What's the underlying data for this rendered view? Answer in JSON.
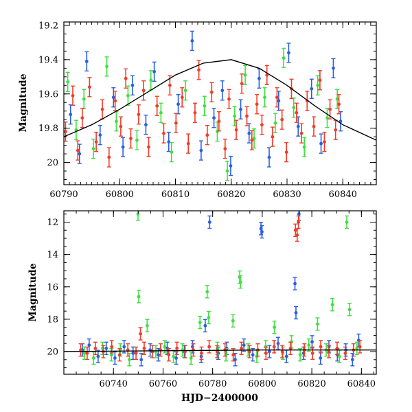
{
  "chart_data": [
    {
      "type": "scatter",
      "title": "",
      "xlabel": "",
      "ylabel": "Magnitude",
      "xlim": [
        60790,
        60846
      ],
      "ylim": [
        20.13,
        19.18
      ],
      "y_inverted": true,
      "xticks": [
        60790,
        60800,
        60810,
        60820,
        60830,
        60840
      ],
      "xtick_labels": [
        "60790",
        "60800",
        "60810",
        "60820",
        "60830",
        "60840"
      ],
      "yticks": [
        19.2,
        19.4,
        19.6,
        19.8,
        20
      ],
      "ytick_labels": [
        "19.2",
        "19.4",
        "19.6",
        "19.8",
        "20"
      ],
      "legend": "none",
      "error_bars": true,
      "series_colors": [
        "#2a5fe0",
        "#3ee03e",
        "#f03c28"
      ],
      "model_curve": {
        "x": [
          60790,
          60795,
          60800,
          60805,
          60810,
          60815,
          60820,
          60825,
          60830,
          60835,
          60840,
          60846
        ],
        "y": [
          19.85,
          19.78,
          19.69,
          19.59,
          19.49,
          19.42,
          19.4,
          19.45,
          19.55,
          19.67,
          19.78,
          19.87
        ]
      },
      "series": [
        {
          "color": "#2a5fe0",
          "x": [
            60791.2,
            60792.8,
            60794.1,
            60796.5,
            60798.9,
            60800.6,
            60802.3,
            60804.7,
            60806.2,
            60808.8,
            60810.5,
            60813.0,
            60814.6,
            60816.9,
            60818.4,
            60819.9,
            60821.7,
            60823.2,
            60825.0,
            60826.8,
            60828.5,
            60830.3,
            60832.0,
            60834.4,
            60836.1,
            60838.3,
            60839.6
          ],
          "y": [
            19.72,
            19.95,
            19.41,
            19.84,
            19.62,
            19.91,
            19.55,
            19.78,
            19.47,
            19.88,
            19.66,
            19.29,
            19.93,
            19.74,
            19.58,
            20.02,
            19.69,
            19.83,
            19.51,
            19.97,
            19.64,
            19.36,
            19.79,
            19.57,
            19.89,
            19.45,
            19.76
          ]
        },
        {
          "color": "#3ee03e",
          "x": [
            60790.7,
            60792.2,
            60793.6,
            60795.3,
            60797.7,
            60799.4,
            60801.5,
            60803.1,
            60805.6,
            60807.4,
            60809.3,
            60811.8,
            60815.2,
            60817.5,
            60819.3,
            60820.6,
            60822.5,
            60824.1,
            60826.0,
            60827.9,
            60829.4,
            60831.2,
            60833.1,
            60835.5,
            60837.2,
            60839.0
          ],
          "y": [
            19.53,
            19.81,
            19.63,
            19.92,
            19.44,
            19.76,
            19.61,
            19.87,
            19.52,
            19.71,
            19.94,
            19.58,
            19.67,
            19.82,
            20.05,
            19.73,
            19.49,
            19.86,
            19.62,
            19.77,
            19.39,
            19.68,
            19.91,
            19.55,
            19.74,
            19.63
          ]
        },
        {
          "color": "#f03c28",
          "x": [
            60790.3,
            60791.6,
            60792.5,
            60793.3,
            60794.6,
            60795.8,
            60796.9,
            60798.1,
            60799.2,
            60800.2,
            60801.1,
            60802.0,
            60803.4,
            60804.3,
            60805.2,
            60806.7,
            60807.9,
            60809.0,
            60810.1,
            60811.2,
            60812.3,
            60813.5,
            60814.2,
            60815.7,
            60816.5,
            60817.8,
            60818.9,
            60819.6,
            60820.9,
            60821.9,
            60822.8,
            60823.7,
            60824.6,
            60825.5,
            60826.4,
            60827.4,
            60828.2,
            60829.1,
            60829.9,
            60830.8,
            60831.7,
            60832.6,
            60833.6,
            60834.8,
            60835.9,
            60836.7,
            60837.7,
            60838.7,
            60839.3
          ],
          "y": [
            19.82,
            19.61,
            19.93,
            19.74,
            19.56,
            19.88,
            19.69,
            19.97,
            19.64,
            19.79,
            19.51,
            19.86,
            19.72,
            19.58,
            19.91,
            19.67,
            19.83,
            19.55,
            19.77,
            19.62,
            19.89,
            19.71,
            19.46,
            19.84,
            19.59,
            19.76,
            19.92,
            19.63,
            19.81,
            19.54,
            19.73,
            19.87,
            19.66,
            19.78,
            19.49,
            19.85,
            19.62,
            19.75,
            19.94,
            19.57,
            19.71,
            19.83,
            19.64,
            19.79,
            19.52,
            19.88,
            19.69,
            19.81,
            19.66
          ]
        }
      ]
    },
    {
      "type": "scatter",
      "title": "",
      "xlabel": "HJD−2400000",
      "ylabel": "Magnitude",
      "xlim": [
        60720,
        60846
      ],
      "ylim": [
        21.4,
        11.3
      ],
      "y_inverted": true,
      "xticks": [
        60740,
        60760,
        60780,
        60800,
        60820,
        60840
      ],
      "xtick_labels": [
        "60740",
        "60760",
        "60780",
        "60800",
        "60820",
        "60840"
      ],
      "yticks": [
        12,
        14,
        16,
        18,
        20
      ],
      "ytick_labels": [
        "12",
        "14",
        "16",
        "18",
        "20"
      ],
      "legend": "none",
      "error_bars": true,
      "series_colors": [
        "#2a5fe0",
        "#3ee03e",
        "#f03c28"
      ],
      "model_curve": {
        "x": [
          60720,
          60760,
          60800,
          60846
        ],
        "y": [
          20.0,
          19.95,
          19.9,
          19.9
        ]
      },
      "series": [
        {
          "color": "#2a5fe0",
          "x": [
            60727.5,
            60730.2,
            60733.8,
            60737.1,
            60740.6,
            60744.3,
            60747.9,
            60751.2,
            60754.8,
            60758.1,
            60761.7,
            60765.3,
            60768.6,
            60771.9,
            60775.4,
            60777.0,
            60778.8,
            60782.3,
            60785.7,
            60789.1,
            60792.6,
            60796.2,
            60799.5,
            60799.9,
            60802.9,
            60806.4,
            60809.8,
            60813.2,
            60813.6,
            60814.8,
            60816.7,
            60820.1,
            60823.5,
            60826.9,
            60830.3,
            60833.7,
            60836.4,
            60838.9
          ],
          "y": [
            19.9,
            19.6,
            20.3,
            19.8,
            20.4,
            19.7,
            20.1,
            20.5,
            19.9,
            20.2,
            19.8,
            20.4,
            20.0,
            19.7,
            20.3,
            18.4,
            12.0,
            20.1,
            19.8,
            20.5,
            19.6,
            20.2,
            12.4,
            12.6,
            20.0,
            19.5,
            20.3,
            15.8,
            17.6,
            11.5,
            20.1,
            19.4,
            20.4,
            19.7,
            20.2,
            19.9,
            20.5,
            19.3
          ]
        },
        {
          "color": "#3ee03e",
          "x": [
            60728.3,
            60732.0,
            60735.6,
            60739.2,
            60742.8,
            60746.4,
            60749.9,
            60750.2,
            60753.6,
            60757.1,
            60760.7,
            60764.2,
            60767.8,
            60771.3,
            60774.9,
            60777.8,
            60778.4,
            60781.9,
            60785.4,
            60788.2,
            60790.9,
            60791.2,
            60794.3,
            60797.8,
            60801.4,
            60804.9,
            60808.3,
            60811.8,
            60815.3,
            60818.8,
            60822.3,
            60825.8,
            60828.3,
            60831.1,
            60834.1,
            60835.2,
            60838.2
          ],
          "y": [
            20.1,
            20.4,
            19.8,
            20.2,
            19.9,
            20.5,
            11.5,
            16.6,
            18.4,
            20.0,
            19.7,
            20.3,
            19.9,
            20.4,
            18.2,
            16.3,
            17.9,
            19.8,
            20.2,
            18.1,
            15.4,
            15.7,
            19.9,
            20.3,
            19.7,
            18.5,
            20.1,
            19.4,
            20.2,
            19.6,
            18.3,
            19.9,
            17.1,
            20.3,
            12.0,
            17.4,
            19.8
          ]
        },
        {
          "color": "#f03c28",
          "x": [
            60726.8,
            60729.4,
            60732.7,
            60735.9,
            60739.3,
            60742.5,
            60745.8,
            60749.1,
            60750.9,
            60752.4,
            60755.7,
            60759.0,
            60762.3,
            60765.6,
            60768.9,
            60772.2,
            60775.5,
            60778.6,
            60781.8,
            60785.0,
            60788.3,
            60791.6,
            60794.9,
            60798.2,
            60801.5,
            60804.8,
            60808.1,
            60811.4,
            60813.4,
            60814.1,
            60814.6,
            60817.0,
            60820.3,
            60823.6,
            60826.9,
            60830.2,
            60833.5,
            60836.8,
            60839.4
          ],
          "y": [
            19.9,
            20.1,
            19.8,
            20.0,
            19.7,
            20.2,
            19.9,
            20.1,
            18.9,
            19.8,
            20.0,
            19.9,
            20.2,
            19.8,
            20.0,
            19.9,
            20.1,
            19.7,
            20.0,
            19.9,
            20.2,
            19.8,
            20.0,
            19.9,
            20.1,
            19.7,
            20.0,
            19.8,
            12.5,
            12.8,
            12.0,
            19.9,
            20.1,
            19.7,
            20.0,
            19.8,
            20.1,
            19.9,
            19.7
          ]
        }
      ]
    }
  ]
}
